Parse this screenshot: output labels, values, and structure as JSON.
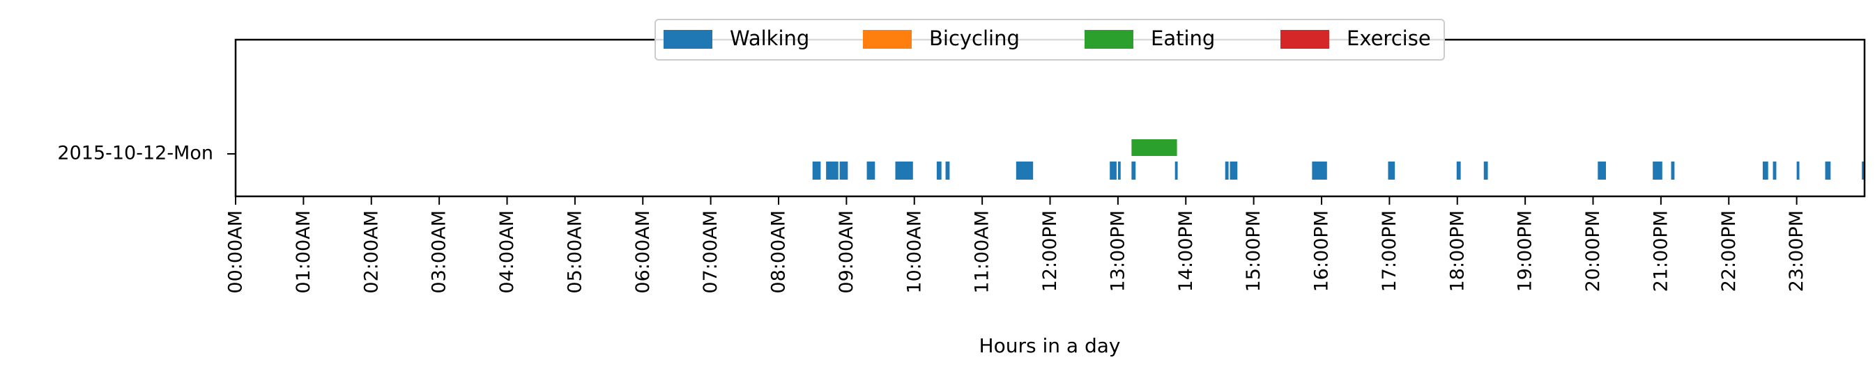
{
  "chart_data": {
    "type": "timeline",
    "xlabel": "Hours in a day",
    "xlim": [
      0,
      24
    ],
    "row_label": "2015-10-12-Mon",
    "x_ticks": [
      {
        "value": 0,
        "label": "00:00AM"
      },
      {
        "value": 1,
        "label": "01:00AM"
      },
      {
        "value": 2,
        "label": "02:00AM"
      },
      {
        "value": 3,
        "label": "03:00AM"
      },
      {
        "value": 4,
        "label": "04:00AM"
      },
      {
        "value": 5,
        "label": "05:00AM"
      },
      {
        "value": 6,
        "label": "06:00AM"
      },
      {
        "value": 7,
        "label": "07:00AM"
      },
      {
        "value": 8,
        "label": "08:00AM"
      },
      {
        "value": 9,
        "label": "09:00AM"
      },
      {
        "value": 10,
        "label": "10:00AM"
      },
      {
        "value": 11,
        "label": "11:00AM"
      },
      {
        "value": 12,
        "label": "12:00PM"
      },
      {
        "value": 13,
        "label": "13:00PM"
      },
      {
        "value": 14,
        "label": "14:00PM"
      },
      {
        "value": 15,
        "label": "15:00PM"
      },
      {
        "value": 16,
        "label": "16:00PM"
      },
      {
        "value": 17,
        "label": "17:00PM"
      },
      {
        "value": 18,
        "label": "18:00PM"
      },
      {
        "value": 19,
        "label": "19:00PM"
      },
      {
        "value": 20,
        "label": "20:00PM"
      },
      {
        "value": 21,
        "label": "21:00PM"
      },
      {
        "value": 22,
        "label": "22:00PM"
      },
      {
        "value": 23,
        "label": "23:00PM"
      }
    ],
    "legend": {
      "placement": "top-center",
      "entries": [
        {
          "name": "Walking",
          "color": "#1f77b4"
        },
        {
          "name": "Bicycling",
          "color": "#ff7f0e"
        },
        {
          "name": "Eating",
          "color": "#2ca02c"
        },
        {
          "name": "Exercise",
          "color": "#d62728"
        }
      ]
    },
    "series": [
      {
        "name": "Walking",
        "color": "#1f77b4",
        "intervals": [
          [
            8.5,
            8.62
          ],
          [
            8.7,
            8.88
          ],
          [
            8.9,
            9.02
          ],
          [
            9.3,
            9.42
          ],
          [
            9.72,
            9.98
          ],
          [
            10.33,
            10.4
          ],
          [
            10.46,
            10.52
          ],
          [
            11.5,
            11.75
          ],
          [
            12.88,
            12.98
          ],
          [
            13.0,
            13.04
          ],
          [
            13.2,
            13.26
          ],
          [
            13.84,
            13.88
          ],
          [
            14.58,
            14.63
          ],
          [
            14.65,
            14.76
          ],
          [
            15.86,
            16.08
          ],
          [
            16.98,
            17.08
          ],
          [
            17.99,
            18.05
          ],
          [
            18.39,
            18.45
          ],
          [
            20.07,
            20.19
          ],
          [
            20.88,
            21.02
          ],
          [
            21.15,
            21.2
          ],
          [
            22.5,
            22.58
          ],
          [
            22.65,
            22.7
          ],
          [
            23.0,
            23.04
          ],
          [
            23.42,
            23.5
          ],
          [
            23.96,
            24.0
          ]
        ]
      },
      {
        "name": "Bicycling",
        "color": "#ff7f0e",
        "intervals": []
      },
      {
        "name": "Eating",
        "color": "#2ca02c",
        "intervals": [
          [
            13.2,
            13.87
          ]
        ]
      },
      {
        "name": "Exercise",
        "color": "#d62728",
        "intervals": []
      }
    ]
  }
}
